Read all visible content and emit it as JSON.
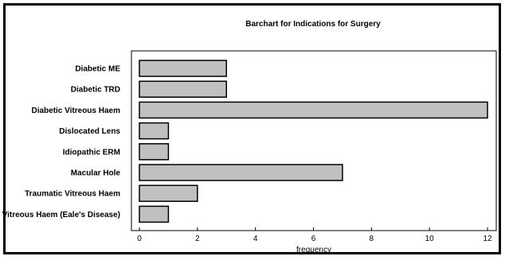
{
  "chart_data": {
    "type": "bar",
    "orientation": "horizontal",
    "title": "Barchart for Indications for Surgery",
    "xlabel": "frequency",
    "ylabel": "",
    "categories": [
      "Diabetic ME",
      "Diabetic TRD",
      "Diabetic Vitreous Haem",
      "Dislocated Lens",
      "Idiopathic ERM",
      "Macular Hole",
      "Traumatic Vitreous Haem",
      "Vitreous Haem (Eale's Disease)"
    ],
    "values": [
      3,
      3,
      12,
      1,
      1,
      7,
      2,
      1
    ],
    "xlim": [
      0,
      12
    ],
    "xticks": [
      0,
      2,
      4,
      6,
      8,
      10,
      12
    ],
    "grid": false,
    "legend": "none",
    "colors": {
      "bar_fill": "#c0c0c0",
      "bar_stroke": "#000000",
      "axis": "#000000"
    }
  }
}
